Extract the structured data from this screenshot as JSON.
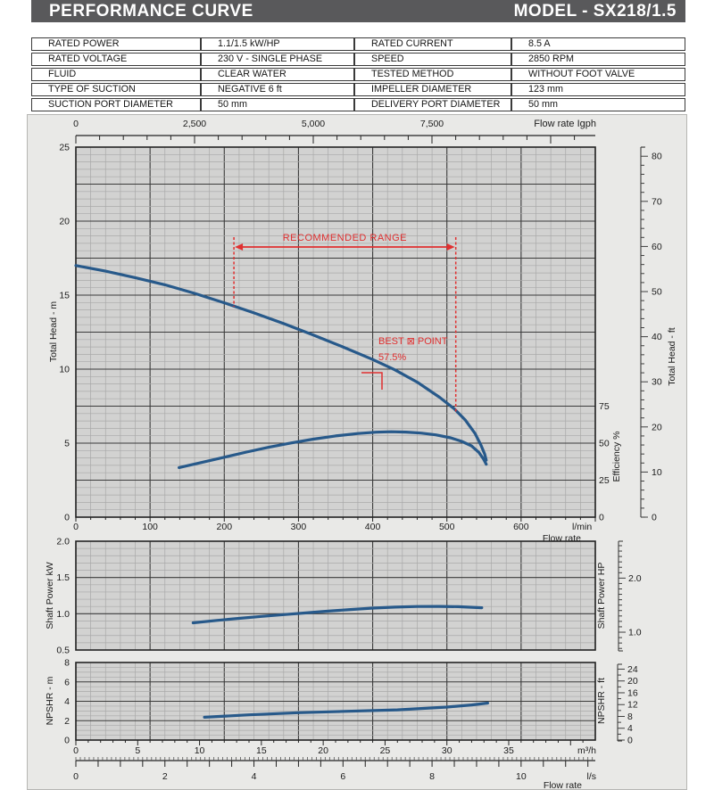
{
  "header": {
    "title": "PERFORMANCE  CURVE",
    "model": "MODEL - SX218/1.5"
  },
  "spec_table": {
    "rows": [
      [
        "RATED POWER",
        "1.1/1.5  kW/HP",
        "RATED CURRENT",
        "8.5  A"
      ],
      [
        "RATED VOLTAGE",
        "230 V - SINGLE PHASE",
        "SPEED",
        "2850 RPM"
      ],
      [
        "FLUID",
        "CLEAR WATER",
        "TESTED  METHOD",
        "WITHOUT FOOT VALVE"
      ],
      [
        "TYPE OF SUCTION",
        "NEGATIVE  6 ft",
        "IMPELLER DIAMETER",
        "123 mm"
      ],
      [
        "SUCTION PORT DIAMETER",
        "50 mm",
        "DELIVERY PORT DIAMETER",
        "50 mm"
      ]
    ]
  },
  "colors": {
    "header_bg": "#59595b",
    "curve": "#27598a",
    "red": "#e03030",
    "plot_bg": "#d2d2d1",
    "grid_minor": "#a9a9a9",
    "grid_major": "#3b3b3b",
    "frame": "#232323",
    "text": "#1b1b1b",
    "panel_bg": "#e9e9e7"
  },
  "chart_data": [
    {
      "id": "head-efficiency-chart",
      "type": "line",
      "title": "",
      "x_axis": {
        "label": "Flow rate",
        "unit": "l/min",
        "min": 0,
        "max": 700,
        "tick_values": [
          0,
          100,
          200,
          300,
          400,
          500,
          600
        ],
        "tick_labels": [
          "0",
          "100",
          "200",
          "300",
          "400",
          "500",
          "600"
        ],
        "minor_step": 20
      },
      "top_axis": {
        "label": "Flow rate  Igph",
        "min": 0,
        "max": 10900,
        "minor_step": 500,
        "tick_values": [
          0,
          2500,
          5000,
          7500
        ],
        "tick_labels": [
          "0",
          "2,500",
          "5,000",
          "7,500"
        ]
      },
      "y_axis": {
        "label": "Total Head - m",
        "min": 0,
        "max": 25,
        "tick_values": [
          25,
          20,
          15,
          10,
          5,
          0
        ],
        "minor_step": 0.5,
        "major_step": 2.5
      },
      "y2_axis": {
        "label": "Total Head - ft",
        "tick_values": [
          80,
          70,
          60,
          50,
          40,
          30,
          20,
          10,
          0
        ],
        "minor_step": 2
      },
      "efficiency_axis": {
        "label": "Efficiency %",
        "tick_values": [
          75,
          50,
          25,
          0
        ]
      },
      "grid": true,
      "series": [
        {
          "name": "total-head",
          "unit": "m vs l/min",
          "points": [
            [
              0,
              17.0
            ],
            [
              40,
              16.62
            ],
            [
              80,
              16.18
            ],
            [
              120,
              15.7
            ],
            [
              160,
              15.12
            ],
            [
              200,
              14.48
            ],
            [
              240,
              13.8
            ],
            [
              280,
              13.08
            ],
            [
              320,
              12.3
            ],
            [
              360,
              11.5
            ],
            [
              400,
              10.65
            ],
            [
              430,
              9.95
            ],
            [
              460,
              9.12
            ],
            [
              490,
              8.1
            ],
            [
              510,
              7.32
            ],
            [
              525,
              6.55
            ],
            [
              538,
              5.65
            ],
            [
              546,
              4.85
            ],
            [
              551,
              4.25
            ],
            [
              553,
              3.85
            ]
          ]
        },
        {
          "name": "efficiency",
          "unit": "% vs l/min",
          "points": [
            [
              139,
              33.5
            ],
            [
              170,
              37.0
            ],
            [
              200,
              40.5
            ],
            [
              230,
              44.0
            ],
            [
              260,
              47.2
            ],
            [
              290,
              50.1
            ],
            [
              320,
              52.7
            ],
            [
              350,
              54.9
            ],
            [
              380,
              56.5
            ],
            [
              405,
              57.4
            ],
            [
              425,
              57.7
            ],
            [
              445,
              57.5
            ],
            [
              465,
              56.8
            ],
            [
              485,
              55.6
            ],
            [
              505,
              53.6
            ],
            [
              520,
              51.2
            ],
            [
              533,
              48.2
            ],
            [
              543,
              43.8
            ],
            [
              549,
              39.5
            ],
            [
              553,
              35.8
            ]
          ]
        }
      ],
      "annotations": {
        "recommended_range": {
          "label": "RECOMMENDED RANGE",
          "from_lmin": 213,
          "to_lmin": 512
        },
        "best_eff_point": {
          "label": "BEST ⊠ POINT",
          "value": "57.5%",
          "at_lmin": 415
        }
      }
    },
    {
      "id": "shaft-power-chart",
      "type": "line",
      "y_axis": {
        "label": "Shaft Power  kW",
        "min": 0.5,
        "max": 2.0,
        "tick_values": [
          2.0,
          1.5,
          1.0,
          0.5
        ],
        "tick_labels": [
          "2.0",
          "1.5",
          "1.0",
          "0.5"
        ],
        "minor_step": 0.1,
        "major_step": 0.5
      },
      "y2_axis": {
        "label": "Shaft Power  HP",
        "tick_values": [
          2.0,
          1.0
        ],
        "tick_labels": [
          "2.0",
          "1.0"
        ],
        "kw_per_hp": 0.7457
      },
      "grid": true,
      "series": [
        {
          "name": "shaft-power",
          "unit": "kW vs l/min",
          "points": [
            [
              158,
              0.875
            ],
            [
              190,
              0.908
            ],
            [
              220,
              0.937
            ],
            [
              250,
              0.963
            ],
            [
              280,
              0.988
            ],
            [
              310,
              1.012
            ],
            [
              340,
              1.036
            ],
            [
              370,
              1.058
            ],
            [
              400,
              1.078
            ],
            [
              430,
              1.092
            ],
            [
              460,
              1.1
            ],
            [
              490,
              1.101
            ],
            [
              515,
              1.097
            ],
            [
              547,
              1.083
            ]
          ]
        }
      ]
    },
    {
      "id": "npshr-chart",
      "type": "line",
      "x_axis": {
        "label": "Flow rate",
        "unit": "m³/h",
        "min": 0,
        "max": 42,
        "tick_values": [
          0,
          5,
          10,
          15,
          20,
          25,
          30,
          35
        ],
        "tick_labels": [
          "0",
          "5",
          "10",
          "15",
          "20",
          "25",
          "30",
          "35"
        ]
      },
      "x2_axis": {
        "unit": "l/s",
        "min": 0,
        "max": 11.67,
        "tick_values": [
          0,
          2,
          4,
          6,
          8,
          10
        ],
        "tick_labels": [
          "0",
          "2",
          "4",
          "6",
          "8",
          "10"
        ]
      },
      "y_axis": {
        "label": "NPSHR  - m",
        "min": 0,
        "max": 8,
        "tick_values": [
          8,
          6,
          4,
          2,
          0
        ],
        "minor_step": 0.5,
        "major_step": 2
      },
      "y2_axis": {
        "label": "NPSHR  - ft",
        "tick_values": [
          24,
          20,
          16,
          12,
          8,
          4,
          0
        ]
      },
      "grid": true,
      "series": [
        {
          "name": "npshr",
          "unit": "m vs m³/h",
          "points": [
            [
              10.4,
              2.35
            ],
            [
              14,
              2.6
            ],
            [
              18,
              2.82
            ],
            [
              22,
              2.97
            ],
            [
              26,
              3.12
            ],
            [
              30,
              3.4
            ],
            [
              32,
              3.62
            ],
            [
              33.3,
              3.82
            ]
          ]
        }
      ]
    }
  ]
}
